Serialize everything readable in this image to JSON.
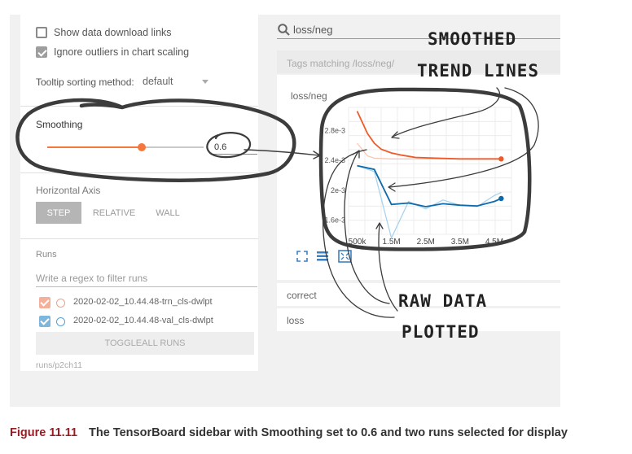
{
  "sidebar": {
    "show_download_label": "Show data download links",
    "ignore_outliers_label": "Ignore outliers in chart scaling",
    "tooltip_label": "Tooltip sorting method:",
    "tooltip_value": "default",
    "smoothing_label": "Smoothing",
    "smoothing_value": "0.6",
    "smoothing_fraction": 0.6,
    "horizontal_axis_label": "Horizontal Axis",
    "axis_buttons": [
      "STEP",
      "RELATIVE",
      "WALL"
    ],
    "runs_label": "Runs",
    "runs_filter_placeholder": "Write a regex to filter runs",
    "runs": [
      {
        "name": "2020-02-02_10.44.48-trn_cls-dwlpt",
        "color": "#f4b09a"
      },
      {
        "name": "2020-02-02_10.44.48-val_cls-dwlpt",
        "color": "#7eb6dc"
      }
    ],
    "toggle_all_label": "TOGGLEALL RUNS",
    "run_path": "runs/p2ch11"
  },
  "main": {
    "search_value": "loss/neg",
    "tags_matching": "Tags matching /loss/neg/",
    "card_title": "loss/neg",
    "other_tags": [
      "correct",
      "loss"
    ]
  },
  "chart_data": {
    "type": "line",
    "title": "loss/neg",
    "y_tick_labels": [
      "2.8e-3",
      "2.4e-3",
      "2e-3",
      "1.6e-3"
    ],
    "x_tick_labels": [
      "500k",
      "1.5M",
      "2.5M",
      "3.5M",
      "4.5M"
    ],
    "xlim": [
      250000,
      5000000
    ],
    "ylim": [
      1.4,
      3.1
    ],
    "y_unit": "e-3",
    "series": [
      {
        "color": "#f05a28",
        "raw_color": "#f7c7b4",
        "smoothed": [
          [
            500000,
            3.05
          ],
          [
            800000,
            2.75
          ],
          [
            1000000,
            2.62
          ],
          [
            1200000,
            2.54
          ],
          [
            1500000,
            2.49
          ],
          [
            1800000,
            2.46
          ],
          [
            2200000,
            2.43
          ],
          [
            2800000,
            2.42
          ],
          [
            3500000,
            2.41
          ],
          [
            4200000,
            2.41
          ],
          [
            4700000,
            2.41
          ]
        ],
        "raw": [
          [
            500000,
            2.62
          ],
          [
            800000,
            2.45
          ],
          [
            1000000,
            2.42
          ],
          [
            1500000,
            2.41
          ],
          [
            2500000,
            2.41
          ],
          [
            3500000,
            2.41
          ],
          [
            4700000,
            2.41
          ]
        ]
      },
      {
        "color": "#0d6aad",
        "raw_color": "#a8d3ef",
        "smoothed": [
          [
            500000,
            2.32
          ],
          [
            1000000,
            2.27
          ],
          [
            1500000,
            1.8
          ],
          [
            2000000,
            1.82
          ],
          [
            2500000,
            1.77
          ],
          [
            3000000,
            1.81
          ],
          [
            3500000,
            1.79
          ],
          [
            4000000,
            1.78
          ],
          [
            4500000,
            1.84
          ],
          [
            4700000,
            1.88
          ]
        ],
        "raw": [
          [
            500000,
            2.32
          ],
          [
            1000000,
            2.24
          ],
          [
            1500000,
            1.35
          ],
          [
            2000000,
            1.84
          ],
          [
            2500000,
            1.74
          ],
          [
            3000000,
            1.86
          ],
          [
            3500000,
            1.79
          ],
          [
            4000000,
            1.77
          ],
          [
            4500000,
            1.92
          ],
          [
            4700000,
            1.96
          ]
        ]
      }
    ]
  },
  "annotations": {
    "smoothed_line1": "SMOOTHED",
    "smoothed_line2": "TREND LINES",
    "raw_line1": "RAW DATA",
    "raw_line2": "PLOTTED"
  },
  "caption": {
    "label": "Figure 11.11",
    "text": "The TensorBoard sidebar with Smoothing set to 0.6 and two runs selected for display"
  }
}
